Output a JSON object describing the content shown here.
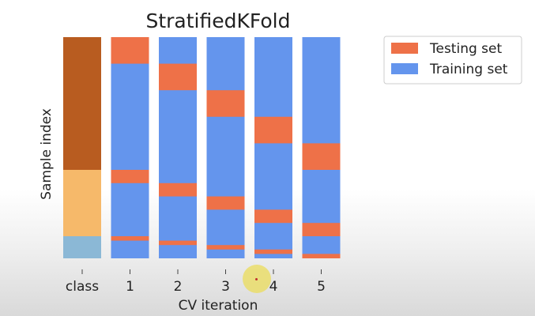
{
  "chart_data": {
    "type": "bar",
    "title": "StratifiedKFold",
    "xlabel": "CV iteration",
    "ylabel": "Sample index",
    "categories": [
      "class",
      "1",
      "2",
      "3",
      "4",
      "5"
    ],
    "class_column": {
      "label": "class",
      "segments": [
        {
          "start": 0.0,
          "end": 0.6,
          "color": "#b85c20"
        },
        {
          "start": 0.6,
          "end": 0.9,
          "color": "#f6b96a"
        },
        {
          "start": 0.9,
          "end": 1.0,
          "color": "#8bb8d6"
        }
      ]
    },
    "cv_iterations": [
      {
        "label": "1",
        "testing": [
          [
            0.0,
            0.12
          ],
          [
            0.6,
            0.66
          ],
          [
            0.9,
            0.92
          ]
        ]
      },
      {
        "label": "2",
        "testing": [
          [
            0.12,
            0.24
          ],
          [
            0.66,
            0.72
          ],
          [
            0.92,
            0.94
          ]
        ]
      },
      {
        "label": "3",
        "testing": [
          [
            0.24,
            0.36
          ],
          [
            0.72,
            0.78
          ],
          [
            0.94,
            0.96
          ]
        ]
      },
      {
        "label": "4",
        "testing": [
          [
            0.36,
            0.48
          ],
          [
            0.78,
            0.84
          ],
          [
            0.96,
            0.98
          ]
        ]
      },
      {
        "label": "5",
        "testing": [
          [
            0.48,
            0.6
          ],
          [
            0.84,
            0.9
          ],
          [
            0.98,
            1.0
          ]
        ]
      }
    ],
    "legend": {
      "placement": "top-right",
      "entries": [
        {
          "label": "Testing set",
          "color": "#ee7148"
        },
        {
          "label": "Training set",
          "color": "#6495ed"
        }
      ]
    },
    "colors": {
      "testing": "#ee7148",
      "training": "#6495ed"
    },
    "grid": false
  }
}
